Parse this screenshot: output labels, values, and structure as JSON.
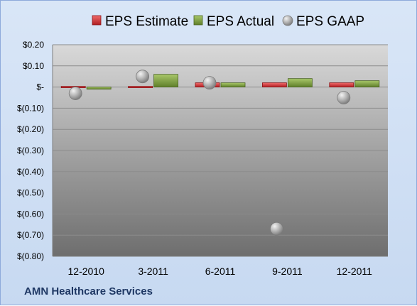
{
  "company_label": "AMN Healthcare Services",
  "colors": {
    "estimate": "#c0282d",
    "actual": "#77933c",
    "gaap": "#a6a6a6"
  },
  "chart_data": {
    "type": "bar",
    "categories": [
      "12-2010",
      "3-2011",
      "6-2011",
      "9-2011",
      "12-2011"
    ],
    "series": [
      {
        "name": "EPS Estimate",
        "kind": "bar",
        "values": [
          0.0,
          0.0,
          0.02,
          0.02,
          0.02
        ]
      },
      {
        "name": "EPS Actual",
        "kind": "bar",
        "values": [
          -0.01,
          0.06,
          0.02,
          0.04,
          0.03
        ]
      },
      {
        "name": "EPS GAAP",
        "kind": "marker",
        "values": [
          -0.03,
          0.05,
          0.02,
          -0.67,
          -0.05
        ]
      }
    ],
    "ylim": [
      -0.8,
      0.2
    ],
    "yticks": [
      0.2,
      0.1,
      0,
      -0.1,
      -0.2,
      -0.3,
      -0.4,
      -0.5,
      -0.6,
      -0.7,
      -0.8
    ],
    "ytick_labels": [
      "$0.20",
      "$0.10",
      "$-",
      "$(0.10)",
      "$(0.20)",
      "$(0.30)",
      "$(0.40)",
      "$(0.50)",
      "$(0.60)",
      "$(0.70)",
      "$(0.80)"
    ],
    "grid": true,
    "legend_position": "top"
  }
}
